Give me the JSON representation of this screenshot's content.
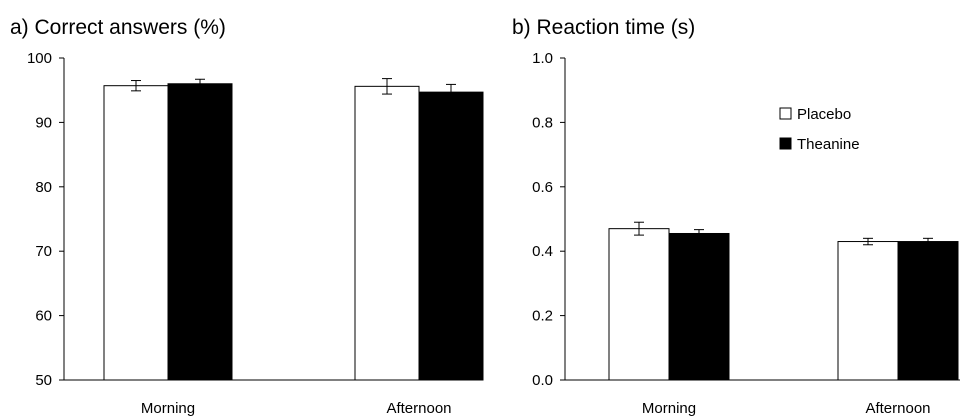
{
  "chart_data": [
    {
      "type": "bar",
      "title": "a) Correct answers (%)",
      "xlabel": "",
      "ylabel": "",
      "categories": [
        "Morning",
        "Afternoon"
      ],
      "ylim": [
        50,
        100
      ],
      "yticks": [
        50,
        60,
        70,
        80,
        90,
        100
      ],
      "ytick_labels": [
        "50",
        "60",
        "70",
        "80",
        "90",
        "100"
      ],
      "series": [
        {
          "name": "Placebo",
          "fill": "#ffffff",
          "values": [
            95.7,
            95.6
          ],
          "errors": [
            0.8,
            1.2
          ]
        },
        {
          "name": "Theanine",
          "fill": "#000000",
          "values": [
            96.0,
            94.7
          ],
          "errors": [
            0.7,
            1.2
          ]
        }
      ],
      "grid": false
    },
    {
      "type": "bar",
      "title": "b) Reaction time (s)",
      "xlabel": "",
      "ylabel": "",
      "categories": [
        "Morning",
        "Afternoon"
      ],
      "ylim": [
        0,
        1.0
      ],
      "yticks": [
        0,
        0.2,
        0.4,
        0.6,
        0.8,
        1.0
      ],
      "ytick_labels": [
        "0.0",
        "0.2",
        "0.4",
        "0.6",
        "0.8",
        "1.0"
      ],
      "series": [
        {
          "name": "Placebo",
          "fill": "#ffffff",
          "values": [
            0.47,
            0.43
          ],
          "errors": [
            0.02,
            0.01
          ]
        },
        {
          "name": "Theanine",
          "fill": "#000000",
          "values": [
            0.455,
            0.43
          ],
          "errors": [
            0.012,
            0.01
          ]
        }
      ],
      "grid": false,
      "legend": {
        "placement": "upper-right",
        "items": [
          {
            "label": "Placebo",
            "fill": "#ffffff"
          },
          {
            "label": "Theanine",
            "fill": "#000000"
          }
        ]
      }
    }
  ]
}
